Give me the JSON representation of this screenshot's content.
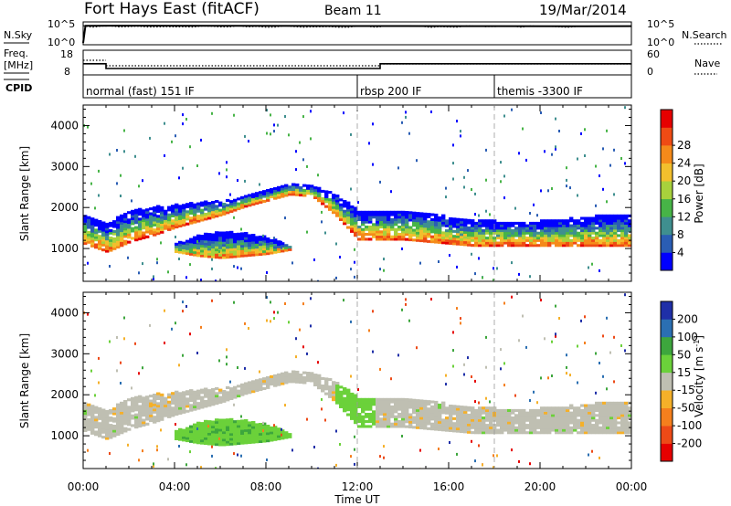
{
  "header": {
    "radar": "Fort Hays East (fitACF)",
    "beam": "Beam 11",
    "date": "19/Mar/2014"
  },
  "panels": {
    "noise": {
      "left_label": "N.Sky",
      "left_ticks": [
        "10^5",
        "10^0"
      ],
      "right_ticks": [
        "10^5",
        "10^0"
      ],
      "right_label": "N.Search"
    },
    "freq": {
      "left_label_1": "Freq.",
      "left_label_2": "[MHz]",
      "left_ticks": [
        "18",
        "8"
      ],
      "right_ticks": [
        "60",
        "0"
      ],
      "right_label": "Nave"
    },
    "cpid": {
      "label": "CPID",
      "modes": [
        {
          "text": "normal (fast) 151 IF",
          "start_hour": 0
        },
        {
          "text": "rbsp 200 IF",
          "start_hour": 12
        },
        {
          "text": "themis -3300 IF",
          "start_hour": 18
        }
      ]
    }
  },
  "colorbars": {
    "power": {
      "label": "Power [dB]",
      "ticks": [
        "4",
        "8",
        "12",
        "16",
        "20",
        "24",
        "28"
      ],
      "colors": [
        "#0000ff",
        "#2a5db4",
        "#3f8f8f",
        "#47b447",
        "#a8d13c",
        "#f2bf2d",
        "#f58a1a",
        "#ef4b14",
        "#e60000"
      ]
    },
    "velocity": {
      "label_1": "Velocity",
      "label_2": "[m s",
      "label_sup": "-1",
      "label_3": "]",
      "ticks": [
        "200",
        "100",
        "50",
        "15",
        "-15",
        "-50",
        "-100",
        "-200"
      ],
      "colors": [
        "#1f2fa8",
        "#2b6fb2",
        "#3da63d",
        "#6bd13a",
        "#bfbfb2",
        "#f5b029",
        "#f57f1d",
        "#ed4a17",
        "#e60000"
      ]
    }
  },
  "chart_data": [
    {
      "type": "line",
      "panel": "noise",
      "x": [
        0,
        0.1,
        2,
        6,
        10,
        14,
        18,
        22,
        24
      ],
      "series": [
        {
          "values": [
            1,
            50000,
            52000,
            50000,
            45000,
            42000,
            40000,
            38000,
            40000
          ]
        }
      ],
      "ylim_label": [
        "10^0",
        "10^5"
      ]
    },
    {
      "type": "line",
      "panel": "freq",
      "x": [
        0,
        1,
        1.001,
        13,
        13.001,
        24
      ],
      "series": [
        {
          "values": [
            12.5,
            12.5,
            10.6,
            10.6,
            12.5,
            12.5
          ]
        }
      ],
      "ylim": [
        8,
        18
      ]
    },
    {
      "type": "heatmap",
      "panel": "power",
      "xlabel": "Time UT",
      "ylabel": "Slant Range [km]",
      "xlim": [
        0,
        24
      ],
      "ylim": [
        200,
        4500
      ],
      "x_ticks": [
        "00:00",
        "04:00",
        "08:00",
        "12:00",
        "16:00",
        "20:00",
        "00:00"
      ],
      "y_ticks": [
        1000,
        2000,
        3000,
        4000
      ],
      "colorbar_range": [
        0,
        32
      ],
      "main_band": {
        "x": [
          0,
          1,
          2,
          3,
          4,
          5,
          6,
          7,
          8,
          9,
          10,
          11,
          12,
          13,
          14,
          15,
          16,
          17,
          18,
          19,
          20,
          21,
          22,
          23,
          24
        ],
        "lower": [
          1100,
          900,
          1150,
          1300,
          1500,
          1650,
          1800,
          2000,
          2150,
          2300,
          2250,
          1800,
          1200,
          1200,
          1200,
          1150,
          1100,
          1050,
          1050,
          1050,
          1050,
          1050,
          1050,
          1050,
          1050
        ],
        "upper": [
          1800,
          1600,
          1900,
          2000,
          2050,
          2100,
          2150,
          2250,
          2400,
          2550,
          2500,
          2300,
          1900,
          1900,
          1900,
          1850,
          1750,
          1700,
          1650,
          1650,
          1650,
          1700,
          1750,
          1800,
          1800
        ]
      },
      "secondary_band": {
        "x": [
          4,
          5,
          6,
          7,
          8,
          9
        ],
        "lower": [
          900,
          800,
          750,
          800,
          850,
          950
        ],
        "upper": [
          1100,
          1300,
          1400,
          1350,
          1250,
          1050
        ]
      }
    },
    {
      "type": "heatmap",
      "panel": "velocity",
      "xlabel": "Time UT",
      "ylabel": "Slant Range [km]",
      "xlim": [
        0,
        24
      ],
      "ylim": [
        200,
        4500
      ],
      "x_ticks": [
        "00:00",
        "04:00",
        "08:00",
        "12:00",
        "16:00",
        "20:00",
        "00:00"
      ],
      "y_ticks": [
        1000,
        2000,
        3000,
        4000
      ],
      "colorbar_range": [
        -250,
        250
      ],
      "main_band_velocity": "-15..15",
      "secondary_band_velocity": "15..50"
    }
  ]
}
